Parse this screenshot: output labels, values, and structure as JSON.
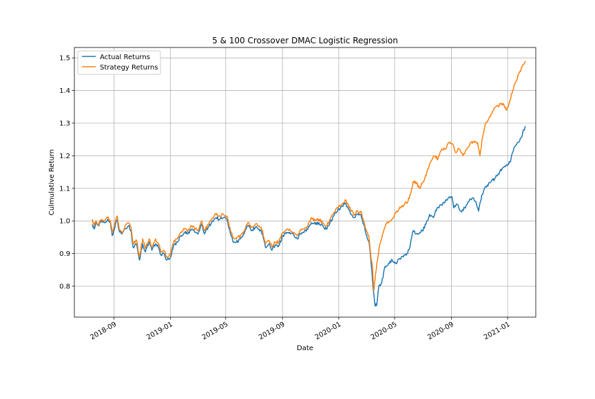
{
  "chart_data": {
    "type": "line",
    "title": "5 & 100 Crossover DMAC Logistic Regression",
    "xlabel": "Date",
    "ylabel": "Culmulative Return",
    "x_range": [
      "2018-06-07",
      "2021-03-03"
    ],
    "ylim": [
      0.705,
      1.532
    ],
    "grid": true,
    "legend_position": "top-left",
    "x_tick_labels": [
      {
        "date": "2018-09-01",
        "label": "2018-09"
      },
      {
        "date": "2019-01-01",
        "label": "2019-01"
      },
      {
        "date": "2019-05-01",
        "label": "2019-05"
      },
      {
        "date": "2019-09-01",
        "label": "2019-09"
      },
      {
        "date": "2020-01-01",
        "label": "2020-01"
      },
      {
        "date": "2020-05-01",
        "label": "2020-05"
      },
      {
        "date": "2020-09-01",
        "label": "2020-09"
      },
      {
        "date": "2021-01-01",
        "label": "2021-01"
      }
    ],
    "y_ticks": [
      0.8,
      0.9,
      1.0,
      1.1,
      1.2,
      1.3,
      1.4,
      1.5
    ],
    "y_tick_labels": [
      "0.8",
      "0.9",
      "1.0",
      "1.1",
      "1.2",
      "1.3",
      "1.4",
      "1.5"
    ],
    "series": [
      {
        "name": "Actual Returns",
        "color": "#1f77b4",
        "points": [
          [
            "2018-07-16",
            0.99
          ],
          [
            "2018-07-20",
            0.975
          ],
          [
            "2018-07-24",
            0.995
          ],
          [
            "2018-07-30",
            0.985
          ],
          [
            "2018-08-05",
            1.0
          ],
          [
            "2018-08-12",
            0.995
          ],
          [
            "2018-08-18",
            1.005
          ],
          [
            "2018-08-24",
            0.995
          ],
          [
            "2018-08-28",
            0.955
          ],
          [
            "2018-09-04",
            0.99
          ],
          [
            "2018-09-08",
            1.005
          ],
          [
            "2018-09-12",
            0.97
          ],
          [
            "2018-09-18",
            0.96
          ],
          [
            "2018-09-24",
            0.975
          ],
          [
            "2018-10-02",
            0.985
          ],
          [
            "2018-10-08",
            0.97
          ],
          [
            "2018-10-12",
            0.92
          ],
          [
            "2018-10-20",
            0.93
          ],
          [
            "2018-10-26",
            0.88
          ],
          [
            "2018-11-02",
            0.93
          ],
          [
            "2018-11-08",
            0.905
          ],
          [
            "2018-11-16",
            0.935
          ],
          [
            "2018-11-22",
            0.91
          ],
          [
            "2018-11-30",
            0.93
          ],
          [
            "2018-12-06",
            0.92
          ],
          [
            "2018-12-12",
            0.895
          ],
          [
            "2018-12-18",
            0.9
          ],
          [
            "2018-12-24",
            0.88
          ],
          [
            "2019-01-02",
            0.89
          ],
          [
            "2019-01-08",
            0.925
          ],
          [
            "2019-01-16",
            0.935
          ],
          [
            "2019-01-24",
            0.955
          ],
          [
            "2019-02-01",
            0.965
          ],
          [
            "2019-02-08",
            0.96
          ],
          [
            "2019-02-16",
            0.975
          ],
          [
            "2019-02-24",
            0.965
          ],
          [
            "2019-03-02",
            0.96
          ],
          [
            "2019-03-10",
            0.99
          ],
          [
            "2019-03-16",
            0.96
          ],
          [
            "2019-03-24",
            0.98
          ],
          [
            "2019-04-02",
            1.0
          ],
          [
            "2019-04-10",
            1.01
          ],
          [
            "2019-04-18",
            1.005
          ],
          [
            "2019-04-26",
            1.01
          ],
          [
            "2019-05-04",
            1.005
          ],
          [
            "2019-05-10",
            0.97
          ],
          [
            "2019-05-16",
            0.94
          ],
          [
            "2019-05-24",
            0.935
          ],
          [
            "2019-06-02",
            0.945
          ],
          [
            "2019-06-10",
            0.96
          ],
          [
            "2019-06-18",
            0.985
          ],
          [
            "2019-06-26",
            0.97
          ],
          [
            "2019-07-04",
            0.98
          ],
          [
            "2019-07-12",
            0.975
          ],
          [
            "2019-07-20",
            0.96
          ],
          [
            "2019-07-26",
            0.92
          ],
          [
            "2019-08-03",
            0.93
          ],
          [
            "2019-08-09",
            0.91
          ],
          [
            "2019-08-16",
            0.925
          ],
          [
            "2019-08-24",
            0.925
          ],
          [
            "2019-09-02",
            0.955
          ],
          [
            "2019-09-10",
            0.965
          ],
          [
            "2019-09-18",
            0.96
          ],
          [
            "2019-09-26",
            0.955
          ],
          [
            "2019-10-03",
            0.945
          ],
          [
            "2019-10-10",
            0.96
          ],
          [
            "2019-10-18",
            0.965
          ],
          [
            "2019-10-26",
            0.975
          ],
          [
            "2019-11-03",
            0.995
          ],
          [
            "2019-11-11",
            0.99
          ],
          [
            "2019-11-19",
            0.995
          ],
          [
            "2019-11-27",
            0.985
          ],
          [
            "2019-12-05",
            0.975
          ],
          [
            "2019-12-13",
            0.995
          ],
          [
            "2019-12-21",
            1.015
          ],
          [
            "2019-12-29",
            1.03
          ],
          [
            "2020-01-07",
            1.045
          ],
          [
            "2020-01-15",
            1.055
          ],
          [
            "2020-01-21",
            1.04
          ],
          [
            "2020-01-28",
            1.02
          ],
          [
            "2020-02-04",
            1.01
          ],
          [
            "2020-02-11",
            1.02
          ],
          [
            "2020-02-18",
            1.02
          ],
          [
            "2020-02-24",
            0.99
          ],
          [
            "2020-02-29",
            0.96
          ],
          [
            "2020-03-06",
            0.94
          ],
          [
            "2020-03-10",
            0.89
          ],
          [
            "2020-03-14",
            0.82
          ],
          [
            "2020-03-19",
            0.745
          ],
          [
            "2020-03-23",
            0.74
          ],
          [
            "2020-03-28",
            0.8
          ],
          [
            "2020-04-03",
            0.81
          ],
          [
            "2020-04-10",
            0.86
          ],
          [
            "2020-04-18",
            0.87
          ],
          [
            "2020-04-26",
            0.88
          ],
          [
            "2020-05-04",
            0.87
          ],
          [
            "2020-05-12",
            0.885
          ],
          [
            "2020-05-20",
            0.89
          ],
          [
            "2020-05-28",
            0.9
          ],
          [
            "2020-06-04",
            0.925
          ],
          [
            "2020-06-10",
            0.97
          ],
          [
            "2020-06-16",
            0.96
          ],
          [
            "2020-06-22",
            0.96
          ],
          [
            "2020-06-30",
            0.97
          ],
          [
            "2020-07-08",
            0.99
          ],
          [
            "2020-07-16",
            1.02
          ],
          [
            "2020-07-24",
            1.01
          ],
          [
            "2020-08-01",
            1.04
          ],
          [
            "2020-08-09",
            1.05
          ],
          [
            "2020-08-17",
            1.055
          ],
          [
            "2020-08-25",
            1.07
          ],
          [
            "2020-09-02",
            1.075
          ],
          [
            "2020-09-06",
            1.04
          ],
          [
            "2020-09-14",
            1.05
          ],
          [
            "2020-09-22",
            1.03
          ],
          [
            "2020-09-30",
            1.04
          ],
          [
            "2020-10-08",
            1.06
          ],
          [
            "2020-10-16",
            1.07
          ],
          [
            "2020-10-24",
            1.06
          ],
          [
            "2020-10-30",
            1.03
          ],
          [
            "2020-11-06",
            1.08
          ],
          [
            "2020-11-12",
            1.1
          ],
          [
            "2020-11-18",
            1.11
          ],
          [
            "2020-11-26",
            1.12
          ],
          [
            "2020-12-04",
            1.13
          ],
          [
            "2020-12-12",
            1.145
          ],
          [
            "2020-12-20",
            1.16
          ],
          [
            "2020-12-28",
            1.17
          ],
          [
            "2021-01-06",
            1.18
          ],
          [
            "2021-01-14",
            1.22
          ],
          [
            "2021-01-22",
            1.24
          ],
          [
            "2021-01-30",
            1.255
          ],
          [
            "2021-02-05",
            1.28
          ],
          [
            "2021-02-09",
            1.29
          ]
        ]
      },
      {
        "name": "Strategy Returns",
        "color": "#ff7f0e",
        "points": [
          [
            "2018-07-16",
            1.005
          ],
          [
            "2018-07-20",
            0.985
          ],
          [
            "2018-07-24",
            1.0
          ],
          [
            "2018-07-30",
            0.99
          ],
          [
            "2018-08-05",
            1.005
          ],
          [
            "2018-08-12",
            1.0
          ],
          [
            "2018-08-18",
            1.01
          ],
          [
            "2018-08-24",
            1.0
          ],
          [
            "2018-08-28",
            0.965
          ],
          [
            "2018-09-04",
            1.0
          ],
          [
            "2018-09-08",
            1.015
          ],
          [
            "2018-09-12",
            0.975
          ],
          [
            "2018-09-18",
            0.965
          ],
          [
            "2018-09-24",
            0.98
          ],
          [
            "2018-10-02",
            0.995
          ],
          [
            "2018-10-08",
            0.98
          ],
          [
            "2018-10-12",
            0.93
          ],
          [
            "2018-10-20",
            0.94
          ],
          [
            "2018-10-26",
            0.89
          ],
          [
            "2018-11-02",
            0.945
          ],
          [
            "2018-11-08",
            0.915
          ],
          [
            "2018-11-16",
            0.945
          ],
          [
            "2018-11-22",
            0.92
          ],
          [
            "2018-11-30",
            0.945
          ],
          [
            "2018-12-06",
            0.93
          ],
          [
            "2018-12-12",
            0.905
          ],
          [
            "2018-12-18",
            0.91
          ],
          [
            "2018-12-24",
            0.89
          ],
          [
            "2019-01-02",
            0.9
          ],
          [
            "2019-01-08",
            0.935
          ],
          [
            "2019-01-16",
            0.945
          ],
          [
            "2019-01-24",
            0.965
          ],
          [
            "2019-02-01",
            0.975
          ],
          [
            "2019-02-08",
            0.97
          ],
          [
            "2019-02-16",
            0.985
          ],
          [
            "2019-02-24",
            0.975
          ],
          [
            "2019-03-02",
            0.97
          ],
          [
            "2019-03-10",
            1.0
          ],
          [
            "2019-03-16",
            0.97
          ],
          [
            "2019-03-24",
            0.99
          ],
          [
            "2019-04-02",
            1.01
          ],
          [
            "2019-04-10",
            1.02
          ],
          [
            "2019-04-18",
            1.015
          ],
          [
            "2019-04-26",
            1.02
          ],
          [
            "2019-05-04",
            1.015
          ],
          [
            "2019-05-10",
            0.98
          ],
          [
            "2019-05-16",
            0.95
          ],
          [
            "2019-05-24",
            0.945
          ],
          [
            "2019-06-02",
            0.955
          ],
          [
            "2019-06-10",
            0.97
          ],
          [
            "2019-06-18",
            0.995
          ],
          [
            "2019-06-26",
            0.98
          ],
          [
            "2019-07-04",
            0.99
          ],
          [
            "2019-07-12",
            0.985
          ],
          [
            "2019-07-20",
            0.97
          ],
          [
            "2019-07-26",
            0.93
          ],
          [
            "2019-08-03",
            0.94
          ],
          [
            "2019-08-09",
            0.92
          ],
          [
            "2019-08-16",
            0.935
          ],
          [
            "2019-08-24",
            0.935
          ],
          [
            "2019-09-02",
            0.965
          ],
          [
            "2019-09-10",
            0.975
          ],
          [
            "2019-09-18",
            0.97
          ],
          [
            "2019-09-26",
            0.965
          ],
          [
            "2019-10-03",
            0.955
          ],
          [
            "2019-10-10",
            0.97
          ],
          [
            "2019-10-18",
            0.975
          ],
          [
            "2019-10-26",
            0.985
          ],
          [
            "2019-11-03",
            1.01
          ],
          [
            "2019-11-11",
            1.0
          ],
          [
            "2019-11-19",
            1.005
          ],
          [
            "2019-11-27",
            0.995
          ],
          [
            "2019-12-05",
            0.985
          ],
          [
            "2019-12-13",
            1.005
          ],
          [
            "2019-12-21",
            1.025
          ],
          [
            "2019-12-29",
            1.04
          ],
          [
            "2020-01-07",
            1.05
          ],
          [
            "2020-01-15",
            1.065
          ],
          [
            "2020-01-21",
            1.05
          ],
          [
            "2020-01-28",
            1.03
          ],
          [
            "2020-02-04",
            1.02
          ],
          [
            "2020-02-11",
            1.03
          ],
          [
            "2020-02-18",
            1.03
          ],
          [
            "2020-02-24",
            1.0
          ],
          [
            "2020-02-29",
            0.975
          ],
          [
            "2020-03-06",
            0.955
          ],
          [
            "2020-03-10",
            0.9
          ],
          [
            "2020-03-14",
            0.86
          ],
          [
            "2020-03-17",
            0.785
          ],
          [
            "2020-03-21",
            0.84
          ],
          [
            "2020-03-25",
            0.88
          ],
          [
            "2020-03-30",
            0.93
          ],
          [
            "2020-04-05",
            0.96
          ],
          [
            "2020-04-12",
            0.99
          ],
          [
            "2020-04-20",
            1.0
          ],
          [
            "2020-04-28",
            1.01
          ],
          [
            "2020-05-06",
            1.03
          ],
          [
            "2020-05-14",
            1.04
          ],
          [
            "2020-05-22",
            1.05
          ],
          [
            "2020-05-30",
            1.06
          ],
          [
            "2020-06-06",
            1.09
          ],
          [
            "2020-06-10",
            1.12
          ],
          [
            "2020-06-16",
            1.12
          ],
          [
            "2020-06-24",
            1.1
          ],
          [
            "2020-07-02",
            1.12
          ],
          [
            "2020-07-10",
            1.15
          ],
          [
            "2020-07-18",
            1.18
          ],
          [
            "2020-07-26",
            1.2
          ],
          [
            "2020-08-03",
            1.19
          ],
          [
            "2020-08-11",
            1.22
          ],
          [
            "2020-08-19",
            1.22
          ],
          [
            "2020-08-27",
            1.24
          ],
          [
            "2020-09-04",
            1.235
          ],
          [
            "2020-09-10",
            1.21
          ],
          [
            "2020-09-18",
            1.22
          ],
          [
            "2020-09-26",
            1.2
          ],
          [
            "2020-10-04",
            1.22
          ],
          [
            "2020-10-12",
            1.24
          ],
          [
            "2020-10-20",
            1.245
          ],
          [
            "2020-10-28",
            1.24
          ],
          [
            "2020-11-02",
            1.2
          ],
          [
            "2020-11-08",
            1.26
          ],
          [
            "2020-11-14",
            1.3
          ],
          [
            "2020-11-20",
            1.31
          ],
          [
            "2020-11-28",
            1.33
          ],
          [
            "2020-12-06",
            1.35
          ],
          [
            "2020-12-14",
            1.355
          ],
          [
            "2020-12-22",
            1.36
          ],
          [
            "2020-12-30",
            1.34
          ],
          [
            "2021-01-06",
            1.37
          ],
          [
            "2021-01-12",
            1.4
          ],
          [
            "2021-01-20",
            1.43
          ],
          [
            "2021-01-28",
            1.46
          ],
          [
            "2021-02-04",
            1.48
          ],
          [
            "2021-02-09",
            1.49
          ]
        ]
      }
    ]
  }
}
